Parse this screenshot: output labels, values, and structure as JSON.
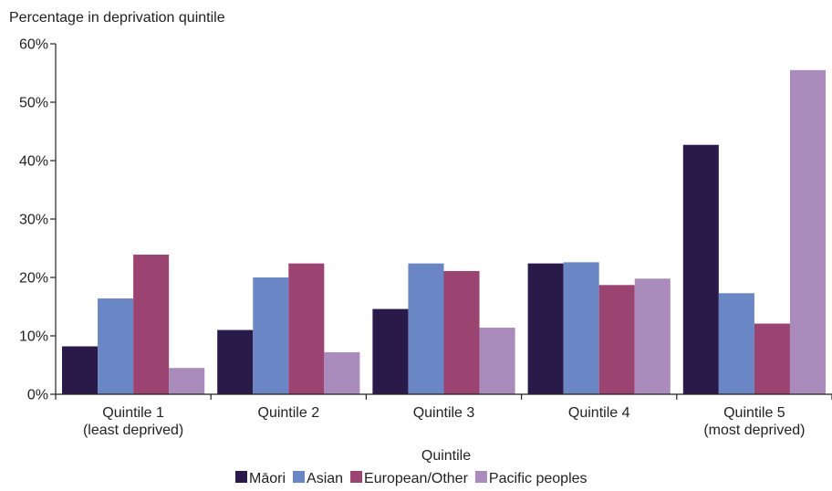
{
  "chart_data": {
    "type": "bar",
    "title": "Percentage in deprivation quintile",
    "xlabel": "Quintile",
    "ylabel": "",
    "ylim": [
      0,
      60
    ],
    "y_ticks": [
      0,
      10,
      20,
      30,
      40,
      50,
      60
    ],
    "y_tick_labels": [
      "0%",
      "10%",
      "20%",
      "30%",
      "40%",
      "50%",
      "60%"
    ],
    "categories": [
      [
        "Quintile 1",
        "(least deprived)"
      ],
      [
        "Quintile 2"
      ],
      [
        "Quintile 3"
      ],
      [
        "Quintile 4"
      ],
      [
        "Quintile 5",
        "(most deprived)"
      ]
    ],
    "series": [
      {
        "name": "Māori",
        "color": "#2a1a4a",
        "values": [
          8.2,
          11.0,
          14.6,
          22.4,
          42.7
        ]
      },
      {
        "name": "Asian",
        "color": "#6b86c4",
        "values": [
          16.4,
          20.0,
          22.4,
          22.6,
          17.3
        ]
      },
      {
        "name": "European/Other",
        "color": "#9b4472",
        "values": [
          23.9,
          22.4,
          21.1,
          18.7,
          12.1
        ]
      },
      {
        "name": "Pacific peoples",
        "color": "#a98cbb",
        "values": [
          4.5,
          7.2,
          11.4,
          19.8,
          55.5
        ]
      }
    ],
    "grid": false,
    "legend_position": "bottom"
  }
}
